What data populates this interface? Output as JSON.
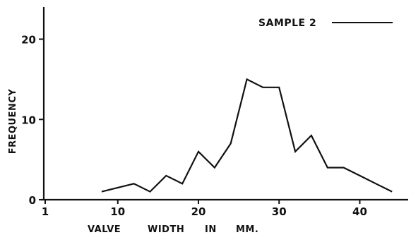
{
  "chart_data": {
    "type": "line",
    "title": "",
    "xlabel_parts": [
      "VALVE",
      "WIDTH",
      "IN",
      "MM."
    ],
    "ylabel": "FREQUENCY",
    "xlim": [
      1,
      46
    ],
    "ylim": [
      0,
      24
    ],
    "x_ticks": [
      1,
      10,
      20,
      30,
      40
    ],
    "y_ticks": [
      0,
      10,
      20
    ],
    "legend_position": "top-right",
    "grid": false,
    "series": [
      {
        "name": "SAMPLE 2",
        "color": "#111111",
        "x": [
          8,
          12,
          14,
          16,
          18,
          20,
          22,
          24,
          26,
          28,
          30,
          32,
          34,
          36,
          38,
          40,
          42,
          44
        ],
        "y": [
          1,
          2,
          1,
          3,
          2,
          6,
          4,
          7,
          15,
          14,
          14,
          6,
          8,
          4,
          4,
          3,
          2,
          1
        ]
      }
    ]
  }
}
